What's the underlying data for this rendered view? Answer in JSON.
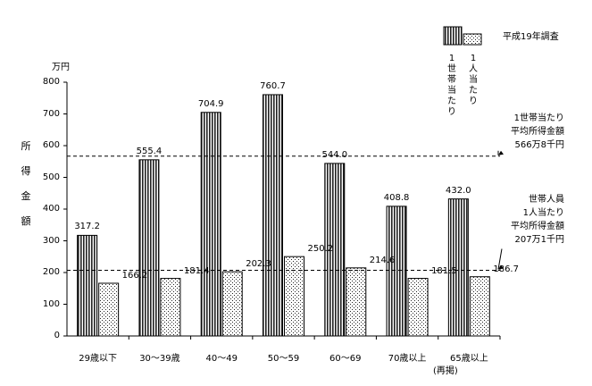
{
  "chart_data": {
    "type": "bar",
    "survey_note": "平成19年調査",
    "unit": "万円",
    "ylabel": "所得金額",
    "ylim": [
      0,
      800
    ],
    "yticks": [
      "0",
      "100",
      "200",
      "300",
      "400",
      "500",
      "600",
      "700",
      "800"
    ],
    "categories": [
      "29歳以下",
      "30～39歳",
      "40～49",
      "50～59",
      "60～69",
      "70歳以上",
      "65歳以上"
    ],
    "category_note": "(再掲)",
    "series": [
      {
        "name": "1世帯当たり",
        "values": [
          317.2,
          555.4,
          704.9,
          760.7,
          544.0,
          408.8,
          432.0
        ],
        "labels": [
          "317.2",
          "555.4",
          "704.9",
          "760.7",
          "544.0",
          "408.8",
          "432.0"
        ]
      },
      {
        "name": "1人当たり",
        "values": [
          166.2,
          181.4,
          202.3,
          250.2,
          214.6,
          181.5,
          186.7
        ],
        "labels": [
          "166.2",
          "181.4",
          "202.3",
          "250.2",
          "214.6",
          "181.5",
          "186.7"
        ]
      }
    ],
    "reference_lines": [
      {
        "value": 566.8,
        "label_lines": [
          "1世帯当たり",
          "平均所得金額",
          "566万8千円"
        ]
      },
      {
        "value": 207.1,
        "label_lines": [
          "世帯人員",
          "1人当たり",
          "平均所得金額",
          "207万1千円"
        ]
      }
    ],
    "legend_position": "top-right"
  }
}
